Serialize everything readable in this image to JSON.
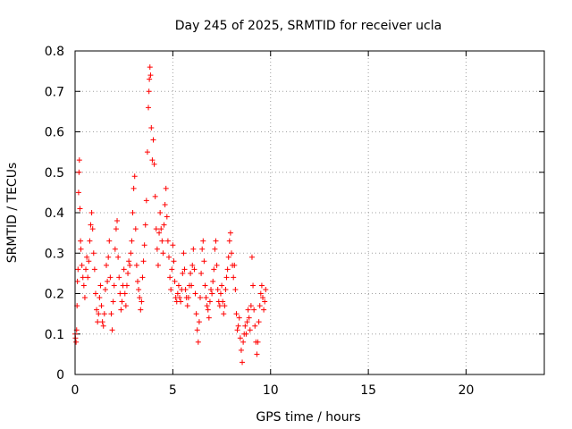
{
  "chart_data": {
    "type": "scatter",
    "title": "Day 245 of 2025, SRMTID for receiver ucla",
    "xlabel": "GPS time / hours",
    "ylabel": "SRMTID / TECUs",
    "xlim": [
      0,
      24
    ],
    "ylim": [
      0,
      0.8
    ],
    "xticks": [
      0,
      5,
      10,
      15,
      20
    ],
    "yticks": [
      0,
      0.1,
      0.2,
      0.3,
      0.4,
      0.5,
      0.6,
      0.7,
      0.8
    ],
    "xtick_labels": [
      "0",
      "5",
      "10",
      "15",
      "20"
    ],
    "ytick_labels": [
      "0",
      "0.1",
      "0.2",
      "0.3",
      "0.4",
      "0.5",
      "0.6",
      "0.7",
      "0.8"
    ],
    "grid": true,
    "marker": "+",
    "color": "#ff0000",
    "series": [
      {
        "name": "SRMTID",
        "points": [
          [
            0.0,
            0.1
          ],
          [
            0.02,
            0.09
          ],
          [
            0.05,
            0.08
          ],
          [
            0.08,
            0.11
          ],
          [
            0.1,
            0.17
          ],
          [
            0.12,
            0.23
          ],
          [
            0.15,
            0.26
          ],
          [
            0.18,
            0.45
          ],
          [
            0.2,
            0.5
          ],
          [
            0.22,
            0.53
          ],
          [
            0.25,
            0.41
          ],
          [
            0.28,
            0.33
          ],
          [
            0.3,
            0.31
          ],
          [
            0.35,
            0.27
          ],
          [
            0.4,
            0.24
          ],
          [
            0.45,
            0.22
          ],
          [
            0.5,
            0.19
          ],
          [
            0.55,
            0.26
          ],
          [
            0.6,
            0.29
          ],
          [
            0.65,
            0.24
          ],
          [
            0.7,
            0.28
          ],
          [
            0.75,
            0.33
          ],
          [
            0.8,
            0.37
          ],
          [
            0.85,
            0.4
          ],
          [
            0.9,
            0.36
          ],
          [
            0.95,
            0.3
          ],
          [
            1.0,
            0.26
          ],
          [
            1.05,
            0.2
          ],
          [
            1.1,
            0.16
          ],
          [
            1.15,
            0.13
          ],
          [
            1.2,
            0.15
          ],
          [
            1.25,
            0.19
          ],
          [
            1.3,
            0.22
          ],
          [
            1.35,
            0.17
          ],
          [
            1.4,
            0.13
          ],
          [
            1.45,
            0.12
          ],
          [
            1.5,
            0.15
          ],
          [
            1.55,
            0.21
          ],
          [
            1.6,
            0.27
          ],
          [
            1.65,
            0.23
          ],
          [
            1.7,
            0.29
          ],
          [
            1.75,
            0.33
          ],
          [
            1.8,
            0.24
          ],
          [
            1.85,
            0.15
          ],
          [
            1.9,
            0.11
          ],
          [
            1.95,
            0.18
          ],
          [
            2.0,
            0.22
          ],
          [
            2.05,
            0.31
          ],
          [
            2.1,
            0.36
          ],
          [
            2.15,
            0.38
          ],
          [
            2.2,
            0.29
          ],
          [
            2.25,
            0.24
          ],
          [
            2.3,
            0.2
          ],
          [
            2.35,
            0.16
          ],
          [
            2.4,
            0.18
          ],
          [
            2.45,
            0.22
          ],
          [
            2.5,
            0.26
          ],
          [
            2.55,
            0.2
          ],
          [
            2.6,
            0.17
          ],
          [
            2.65,
            0.22
          ],
          [
            2.7,
            0.25
          ],
          [
            2.75,
            0.28
          ],
          [
            2.8,
            0.27
          ],
          [
            2.85,
            0.3
          ],
          [
            2.9,
            0.33
          ],
          [
            2.95,
            0.4
          ],
          [
            3.0,
            0.46
          ],
          [
            3.05,
            0.49
          ],
          [
            3.1,
            0.36
          ],
          [
            3.15,
            0.27
          ],
          [
            3.2,
            0.23
          ],
          [
            3.25,
            0.21
          ],
          [
            3.3,
            0.19
          ],
          [
            3.35,
            0.16
          ],
          [
            3.4,
            0.18
          ],
          [
            3.45,
            0.24
          ],
          [
            3.5,
            0.28
          ],
          [
            3.55,
            0.32
          ],
          [
            3.6,
            0.37
          ],
          [
            3.65,
            0.43
          ],
          [
            3.7,
            0.55
          ],
          [
            3.75,
            0.66
          ],
          [
            3.78,
            0.7
          ],
          [
            3.8,
            0.73
          ],
          [
            3.83,
            0.76
          ],
          [
            3.86,
            0.74
          ],
          [
            3.9,
            0.61
          ],
          [
            3.95,
            0.53
          ],
          [
            4.0,
            0.58
          ],
          [
            4.05,
            0.52
          ],
          [
            4.1,
            0.44
          ],
          [
            4.15,
            0.36
          ],
          [
            4.2,
            0.31
          ],
          [
            4.25,
            0.27
          ],
          [
            4.3,
            0.35
          ],
          [
            4.35,
            0.4
          ],
          [
            4.4,
            0.36
          ],
          [
            4.45,
            0.33
          ],
          [
            4.5,
            0.3
          ],
          [
            4.55,
            0.37
          ],
          [
            4.6,
            0.42
          ],
          [
            4.65,
            0.46
          ],
          [
            4.7,
            0.39
          ],
          [
            4.75,
            0.33
          ],
          [
            4.8,
            0.29
          ],
          [
            4.85,
            0.24
          ],
          [
            4.9,
            0.21
          ],
          [
            4.95,
            0.26
          ],
          [
            5.0,
            0.32
          ],
          [
            5.05,
            0.28
          ],
          [
            5.1,
            0.23
          ],
          [
            5.15,
            0.19
          ],
          [
            5.2,
            0.18
          ],
          [
            5.25,
            0.2
          ],
          [
            5.3,
            0.22
          ],
          [
            5.35,
            0.19
          ],
          [
            5.4,
            0.18
          ],
          [
            5.45,
            0.21
          ],
          [
            5.5,
            0.25
          ],
          [
            5.55,
            0.3
          ],
          [
            5.6,
            0.26
          ],
          [
            5.65,
            0.21
          ],
          [
            5.7,
            0.19
          ],
          [
            5.75,
            0.17
          ],
          [
            5.8,
            0.19
          ],
          [
            5.85,
            0.22
          ],
          [
            5.9,
            0.25
          ],
          [
            5.95,
            0.22
          ],
          [
            6.0,
            0.27
          ],
          [
            6.05,
            0.31
          ],
          [
            6.1,
            0.26
          ],
          [
            6.15,
            0.2
          ],
          [
            6.2,
            0.15
          ],
          [
            6.25,
            0.11
          ],
          [
            6.3,
            0.08
          ],
          [
            6.35,
            0.13
          ],
          [
            6.4,
            0.19
          ],
          [
            6.45,
            0.25
          ],
          [
            6.5,
            0.31
          ],
          [
            6.55,
            0.33
          ],
          [
            6.6,
            0.28
          ],
          [
            6.65,
            0.22
          ],
          [
            6.7,
            0.19
          ],
          [
            6.75,
            0.17
          ],
          [
            6.8,
            0.16
          ],
          [
            6.85,
            0.14
          ],
          [
            6.9,
            0.18
          ],
          [
            6.95,
            0.21
          ],
          [
            7.0,
            0.2
          ],
          [
            7.05,
            0.23
          ],
          [
            7.1,
            0.26
          ],
          [
            7.15,
            0.31
          ],
          [
            7.2,
            0.33
          ],
          [
            7.25,
            0.27
          ],
          [
            7.3,
            0.21
          ],
          [
            7.35,
            0.18
          ],
          [
            7.4,
            0.17
          ],
          [
            7.45,
            0.2
          ],
          [
            7.5,
            0.22
          ],
          [
            7.55,
            0.18
          ],
          [
            7.6,
            0.15
          ],
          [
            7.65,
            0.17
          ],
          [
            7.7,
            0.21
          ],
          [
            7.75,
            0.24
          ],
          [
            7.8,
            0.26
          ],
          [
            7.85,
            0.29
          ],
          [
            7.9,
            0.33
          ],
          [
            7.95,
            0.35
          ],
          [
            8.0,
            0.3
          ],
          [
            8.05,
            0.27
          ],
          [
            8.1,
            0.24
          ],
          [
            8.15,
            0.27
          ],
          [
            8.2,
            0.21
          ],
          [
            8.25,
            0.15
          ],
          [
            8.3,
            0.11
          ],
          [
            8.35,
            0.12
          ],
          [
            8.4,
            0.14
          ],
          [
            8.45,
            0.09
          ],
          [
            8.5,
            0.06
          ],
          [
            8.55,
            0.03
          ],
          [
            8.6,
            0.08
          ],
          [
            8.65,
            0.1
          ],
          [
            8.7,
            0.12
          ],
          [
            8.75,
            0.1
          ],
          [
            8.8,
            0.13
          ],
          [
            8.85,
            0.16
          ],
          [
            8.9,
            0.14
          ],
          [
            8.95,
            0.11
          ],
          [
            9.0,
            0.17
          ],
          [
            9.05,
            0.29
          ],
          [
            9.1,
            0.22
          ],
          [
            9.15,
            0.16
          ],
          [
            9.2,
            0.12
          ],
          [
            9.25,
            0.08
          ],
          [
            9.3,
            0.05
          ],
          [
            9.35,
            0.08
          ],
          [
            9.4,
            0.13
          ],
          [
            9.45,
            0.17
          ],
          [
            9.5,
            0.2
          ],
          [
            9.55,
            0.22
          ],
          [
            9.6,
            0.19
          ],
          [
            9.65,
            0.16
          ],
          [
            9.7,
            0.18
          ],
          [
            9.75,
            0.21
          ]
        ]
      }
    ]
  }
}
